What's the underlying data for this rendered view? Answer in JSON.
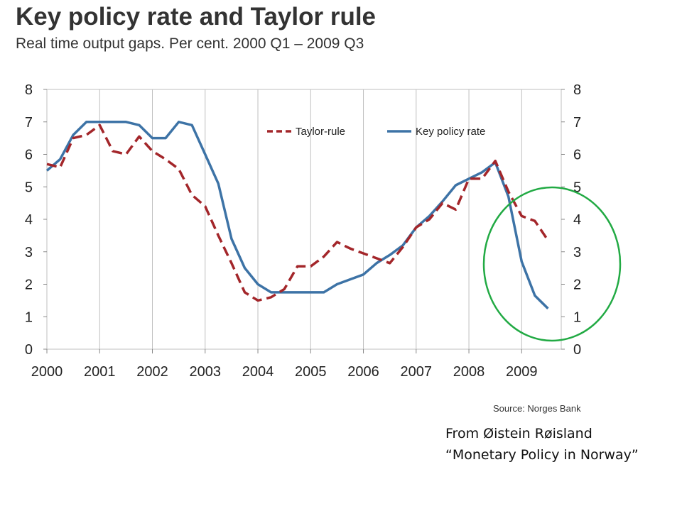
{
  "title": "Key policy rate and Taylor rule",
  "subtitle": "Real time output gaps. Per cent. 2000 Q1 – 2009 Q3",
  "source": "Source: Norges Bank",
  "credit": {
    "line1": "From Øistein Røisland",
    "line2": "“Monetary Policy in Norway”"
  },
  "colors": {
    "taylor": "#a3262a",
    "policy": "#3d73a6",
    "highlight_circle": "#22aa44",
    "grid": "#bfbfbf"
  },
  "chart_data": {
    "type": "line",
    "title": "Key policy rate and Taylor rule",
    "xlabel": "",
    "ylabel": "",
    "xlim": [
      2000,
      2009.75
    ],
    "ylim": [
      0,
      8
    ],
    "x_ticks": [
      "2000",
      "2001",
      "2002",
      "2003",
      "2004",
      "2005",
      "2006",
      "2007",
      "2008",
      "2009"
    ],
    "y_ticks": [
      "0",
      "1",
      "2",
      "3",
      "4",
      "5",
      "6",
      "7",
      "8"
    ],
    "grid": "vertical",
    "legend": "top-center",
    "secondary_y_axis": true,
    "series": [
      {
        "name": "Taylor-rule",
        "style": "dashed",
        "x": [
          2000.0,
          2000.25,
          2000.5,
          2000.75,
          2001.0,
          2001.25,
          2001.5,
          2001.75,
          2002.0,
          2002.25,
          2002.5,
          2002.75,
          2003.0,
          2003.25,
          2003.5,
          2003.75,
          2004.0,
          2004.25,
          2004.5,
          2004.75,
          2005.0,
          2005.25,
          2005.5,
          2005.75,
          2006.0,
          2006.25,
          2006.5,
          2006.75,
          2007.0,
          2007.25,
          2007.5,
          2007.75,
          2008.0,
          2008.25,
          2008.5,
          2008.75,
          2009.0,
          2009.25,
          2009.5
        ],
        "y": [
          5.7,
          5.6,
          6.5,
          6.6,
          6.9,
          6.1,
          6.0,
          6.55,
          6.1,
          5.85,
          5.55,
          4.75,
          4.4,
          3.5,
          2.65,
          1.75,
          1.5,
          1.6,
          1.85,
          2.55,
          2.55,
          2.85,
          3.3,
          3.1,
          2.95,
          2.8,
          2.65,
          3.15,
          3.75,
          4.0,
          4.5,
          4.3,
          5.25,
          5.25,
          5.8,
          4.85,
          4.1,
          3.95,
          3.35
        ]
      },
      {
        "name": "Key policy rate",
        "style": "solid",
        "x": [
          2000.0,
          2000.25,
          2000.5,
          2000.75,
          2001.0,
          2001.25,
          2001.5,
          2001.75,
          2002.0,
          2002.25,
          2002.5,
          2002.75,
          2003.0,
          2003.25,
          2003.5,
          2003.75,
          2004.0,
          2004.25,
          2004.5,
          2004.75,
          2005.0,
          2005.25,
          2005.5,
          2005.75,
          2006.0,
          2006.25,
          2006.5,
          2006.75,
          2007.0,
          2007.25,
          2007.5,
          2007.75,
          2008.0,
          2008.25,
          2008.5,
          2008.75,
          2009.0,
          2009.25,
          2009.5
        ],
        "y": [
          5.5,
          5.85,
          6.6,
          7.0,
          7.0,
          7.0,
          7.0,
          6.9,
          6.5,
          6.5,
          7.0,
          6.9,
          6.0,
          5.1,
          3.4,
          2.5,
          2.0,
          1.75,
          1.75,
          1.75,
          1.75,
          1.75,
          2.0,
          2.15,
          2.3,
          2.65,
          2.9,
          3.2,
          3.75,
          4.1,
          4.55,
          5.05,
          5.25,
          5.45,
          5.75,
          4.7,
          2.7,
          1.65,
          1.25
        ]
      }
    ]
  }
}
